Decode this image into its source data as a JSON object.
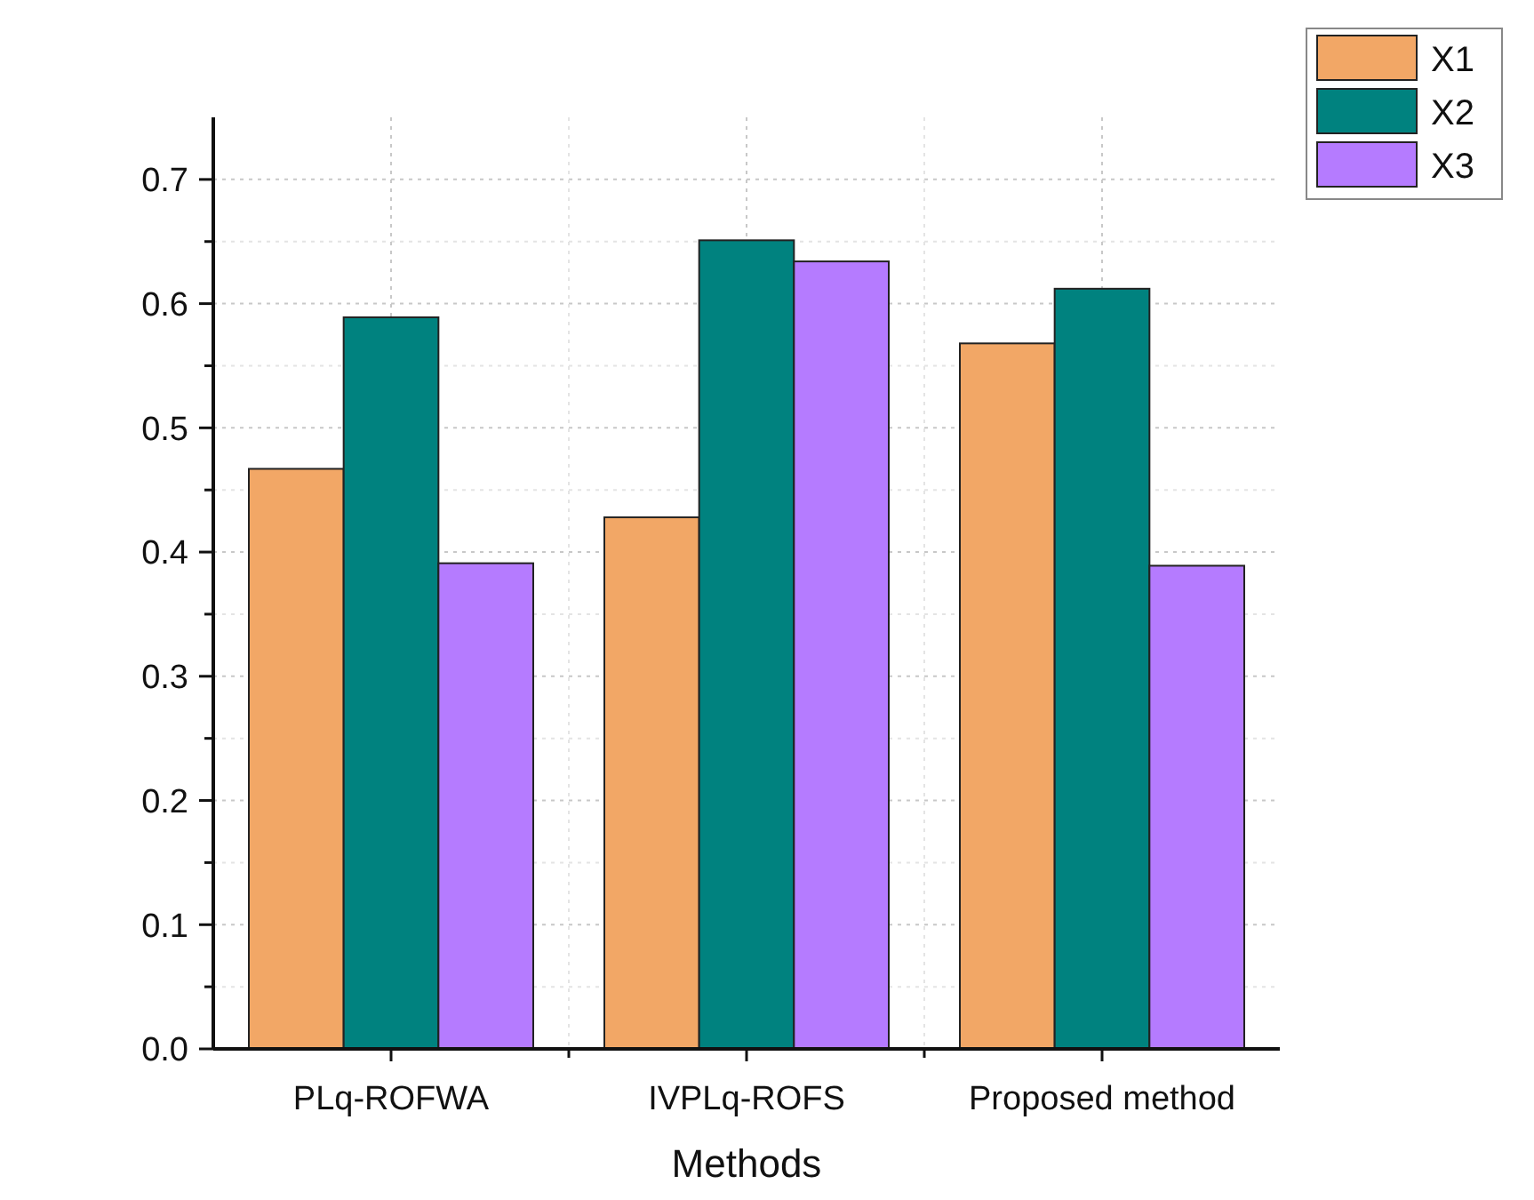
{
  "chart_data": {
    "type": "bar",
    "xlabel": "Methods",
    "categories": [
      "PLq-ROFWA",
      "IVPLq-ROFS",
      "Proposed method"
    ],
    "series": [
      {
        "name": "X1",
        "color": "#f2a766",
        "values": [
          0.467,
          0.428,
          0.568
        ]
      },
      {
        "name": "X2",
        "color": "#00827f",
        "values": [
          0.589,
          0.651,
          0.612
        ]
      },
      {
        "name": "X3",
        "color": "#b57bff",
        "values": [
          0.391,
          0.634,
          0.389
        ]
      }
    ],
    "ylim": [
      0,
      0.75
    ],
    "yticks": [
      {
        "value": 0,
        "label": "0.0"
      },
      {
        "value": 0.05,
        "label": null
      },
      {
        "value": 0.1,
        "label": "0.1"
      },
      {
        "value": 0.15,
        "label": null
      },
      {
        "value": 0.2,
        "label": "0.2"
      },
      {
        "value": 0.25,
        "label": null
      },
      {
        "value": 0.3,
        "label": "0.3"
      },
      {
        "value": 0.35,
        "label": null
      },
      {
        "value": 0.4,
        "label": "0.4"
      },
      {
        "value": 0.45,
        "label": null
      },
      {
        "value": 0.5,
        "label": "0.5"
      },
      {
        "value": 0.55,
        "label": null
      },
      {
        "value": 0.6,
        "label": "0.6"
      },
      {
        "value": 0.65,
        "label": null
      },
      {
        "value": 0.7,
        "label": "0.7"
      }
    ],
    "grid": true,
    "legend": "top right"
  }
}
